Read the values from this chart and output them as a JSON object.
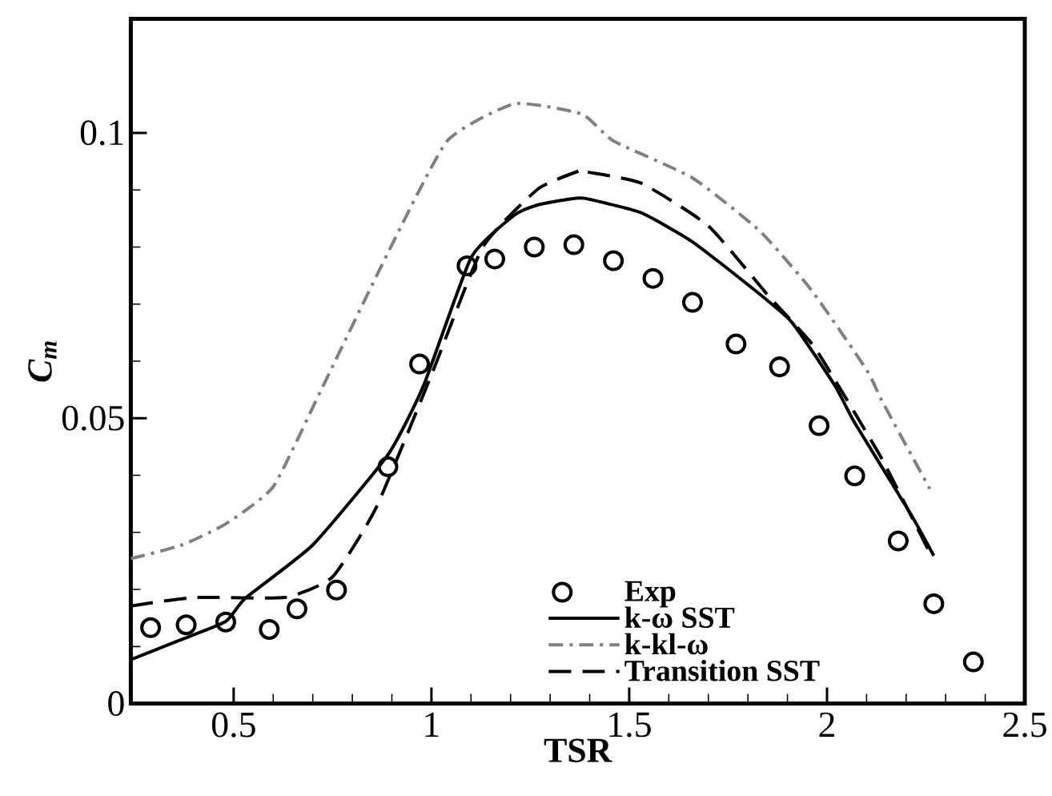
{
  "chart_data": {
    "type": "line",
    "xlabel": "TSR",
    "ylabel": "C$_{m}$",
    "xlim": [
      0.24,
      2.5
    ],
    "ylim": [
      0,
      0.12
    ],
    "xticks": [
      0.5,
      1,
      1.5,
      2,
      2.5
    ],
    "yticks": [
      0,
      0.05,
      0.1
    ],
    "grid": false,
    "legend": "bottom",
    "series": [
      {
        "name": "Exp",
        "type": "scatter",
        "marker": "circle",
        "color": "#000000",
        "x": [
          0.29,
          0.38,
          0.48,
          0.59,
          0.66,
          0.76,
          0.89,
          0.97,
          1.09,
          1.16,
          1.26,
          1.36,
          1.46,
          1.56,
          1.66,
          1.77,
          1.88,
          1.98,
          2.07,
          2.18,
          2.27,
          2.37
        ],
        "values": [
          0.0133,
          0.0138,
          0.0143,
          0.013,
          0.0166,
          0.0199,
          0.0415,
          0.0595,
          0.0767,
          0.0779,
          0.08,
          0.0804,
          0.0776,
          0.0745,
          0.0703,
          0.063,
          0.059,
          0.0487,
          0.0399,
          0.0285,
          0.0175,
          0.0073
        ]
      },
      {
        "name": "k-ω  SST",
        "line_style": "solid",
        "color": "#000000",
        "x": [
          0.24,
          0.36,
          0.48,
          0.53,
          0.7,
          0.89,
          0.98,
          1.1,
          1.21,
          1.27,
          1.35,
          1.39,
          1.53,
          1.66,
          1.8,
          1.91,
          2.02,
          2.07,
          2.21,
          2.27
        ],
        "values": [
          0.0077,
          0.011,
          0.0144,
          0.0185,
          0.0278,
          0.0436,
          0.0557,
          0.0781,
          0.0856,
          0.0874,
          0.0884,
          0.0885,
          0.086,
          0.0809,
          0.0734,
          0.0669,
          0.0557,
          0.0492,
          0.0334,
          0.0259
        ]
      },
      {
        "name": "k-kl-ω",
        "line_style": "dashdot",
        "color": "#808080",
        "x": [
          0.24,
          0.37,
          0.48,
          0.6,
          0.72,
          0.89,
          1.04,
          1.21,
          1.38,
          1.46,
          1.66,
          1.83,
          1.96,
          2.1,
          2.14,
          2.26
        ],
        "values": [
          0.0254,
          0.0278,
          0.0315,
          0.038,
          0.0548,
          0.079,
          0.0986,
          0.1051,
          0.1033,
          0.0986,
          0.0921,
          0.0828,
          0.0725,
          0.0585,
          0.0529,
          0.0376
        ]
      },
      {
        "name": "Transition SST",
        "line_style": "dashed",
        "color": "#000000",
        "x": [
          0.24,
          0.4,
          0.63,
          0.75,
          0.86,
          1.0,
          1.13,
          1.27,
          1.38,
          1.39,
          1.53,
          1.7,
          1.85,
          1.96,
          2.02,
          2.14,
          2.26
        ],
        "values": [
          0.0171,
          0.0186,
          0.0186,
          0.0222,
          0.0343,
          0.0576,
          0.08,
          0.0902,
          0.0935,
          0.0932,
          0.0912,
          0.0837,
          0.0716,
          0.0632,
          0.0567,
          0.0427,
          0.0264
        ]
      }
    ]
  }
}
